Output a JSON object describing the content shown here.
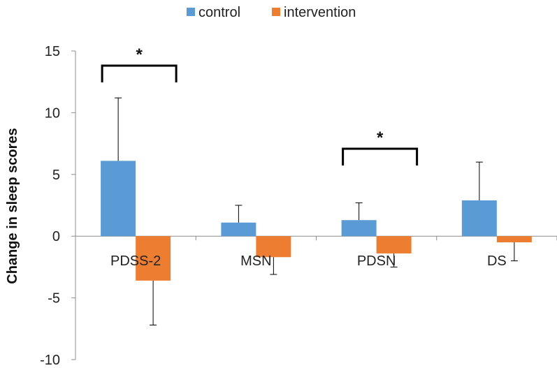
{
  "chart_data": {
    "type": "bar",
    "categories": [
      "PDSS-2",
      "MSN",
      "PDSN",
      "DS"
    ],
    "series": [
      {
        "name": "control",
        "color": "#5B9BD5",
        "values": [
          6.1,
          1.1,
          1.3,
          2.9
        ],
        "errors": [
          5.1,
          1.4,
          1.4,
          3.1
        ]
      },
      {
        "name": "intervention",
        "color": "#ED7D31",
        "values": [
          -3.6,
          -1.7,
          -1.4,
          -0.5
        ],
        "errors": [
          3.6,
          1.4,
          1.1,
          1.5
        ]
      }
    ],
    "ylabel": "Change in sleep scores",
    "ylim": [
      -10,
      15
    ],
    "yticks": [
      15,
      10,
      5,
      0,
      -5,
      -10
    ],
    "grid": false,
    "legend_position": "top",
    "significance": [
      {
        "category": "PDSS-2",
        "label": "*"
      },
      {
        "category": "PDSN",
        "label": "*"
      }
    ]
  }
}
